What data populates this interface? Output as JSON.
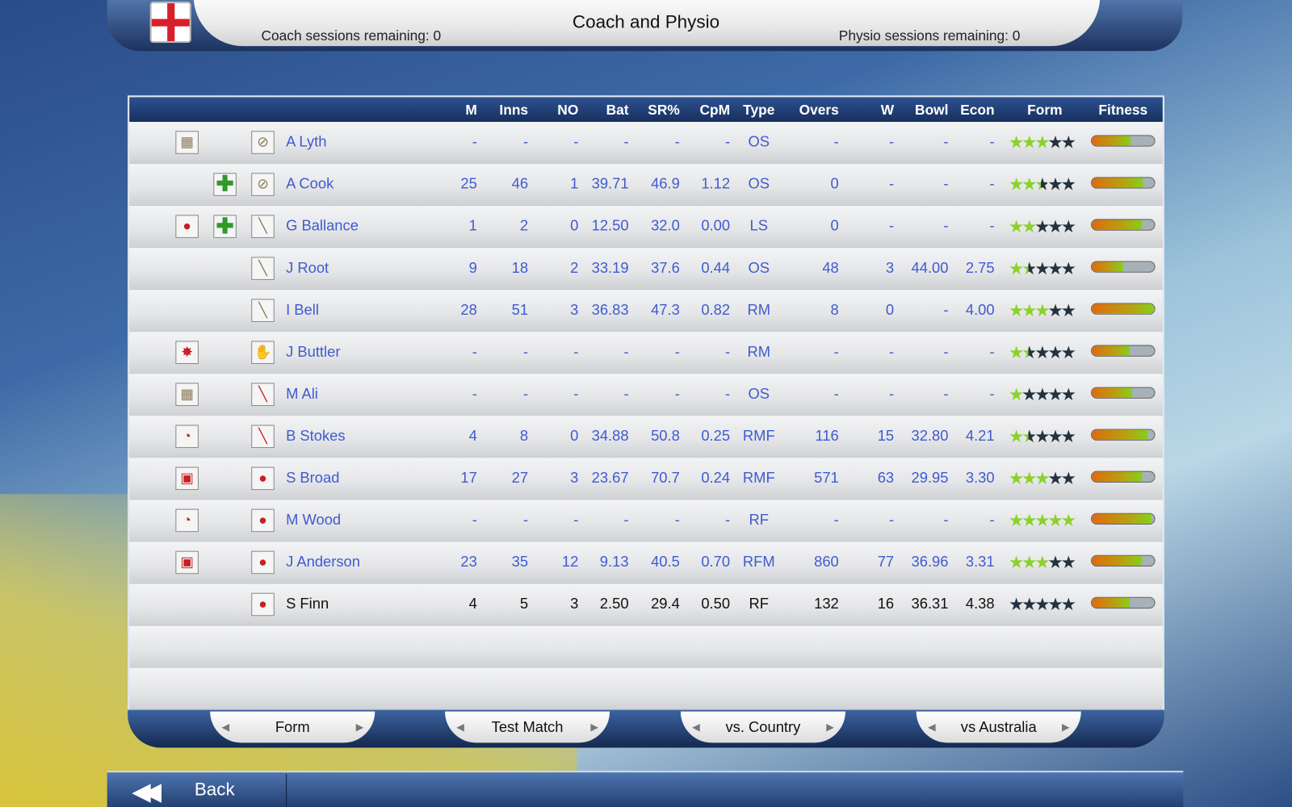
{
  "header": {
    "title": "Coach and Physio",
    "coach_remaining": "Coach sessions remaining: 0",
    "physio_remaining": "Physio sessions remaining: 0",
    "flag": "england-flag"
  },
  "table": {
    "columns": [
      "M",
      "Inns",
      "NO",
      "Bat",
      "SR%",
      "CpM",
      "Type",
      "Overs",
      "W",
      "Bowl",
      "Econ",
      "Form",
      "Fitness"
    ],
    "rows": [
      {
        "status_icon": "bat-net-icon",
        "treatment_icon": "",
        "role_icon": "bat-zero-icon",
        "name": "A Lyth",
        "M": "-",
        "Inns": "-",
        "NO": "-",
        "Bat": "-",
        "SR": "-",
        "CpM": "-",
        "Type": "OS",
        "Overs": "-",
        "W": "-",
        "Bowl": "-",
        "Econ": "-",
        "form": 3,
        "fitness": 0.62
      },
      {
        "status_icon": "",
        "treatment_icon": "plus-icon",
        "role_icon": "bat-zero-icon",
        "name": "A Cook",
        "M": "25",
        "Inns": "46",
        "NO": "1",
        "Bat": "39.71",
        "SR": "46.9",
        "CpM": "1.12",
        "Type": "OS",
        "Overs": "0",
        "W": "-",
        "Bowl": "-",
        "Econ": "-",
        "form": 2.5,
        "fitness": 0.82
      },
      {
        "status_icon": "crowd-ball-icon",
        "treatment_icon": "plus-icon",
        "role_icon": "bat-icon",
        "name": "G Ballance",
        "M": "1",
        "Inns": "2",
        "NO": "0",
        "Bat": "12.50",
        "SR": "32.0",
        "CpM": "0.00",
        "Type": "LS",
        "Overs": "0",
        "W": "-",
        "Bowl": "-",
        "Econ": "-",
        "form": 2,
        "fitness": 0.8
      },
      {
        "status_icon": "",
        "treatment_icon": "",
        "role_icon": "bat-icon",
        "name": "J Root",
        "M": "9",
        "Inns": "18",
        "NO": "2",
        "Bat": "33.19",
        "SR": "37.6",
        "CpM": "0.44",
        "Type": "OS",
        "Overs": "48",
        "W": "3",
        "Bowl": "44.00",
        "Econ": "2.75",
        "form": 1.5,
        "fitness": 0.5
      },
      {
        "status_icon": "",
        "treatment_icon": "",
        "role_icon": "bat-icon",
        "name": "I Bell",
        "M": "28",
        "Inns": "51",
        "NO": "3",
        "Bat": "36.83",
        "SR": "47.3",
        "CpM": "0.82",
        "Type": "RM",
        "Overs": "8",
        "W": "0",
        "Bowl": "-",
        "Econ": "4.00",
        "form": 3,
        "fitness": 1.0
      },
      {
        "status_icon": "bat-ball-splash-icon",
        "treatment_icon": "",
        "role_icon": "keeper-glove-icon",
        "name": "J Buttler",
        "M": "-",
        "Inns": "-",
        "NO": "-",
        "Bat": "-",
        "SR": "-",
        "CpM": "-",
        "Type": "RM",
        "Overs": "-",
        "W": "-",
        "Bowl": "-",
        "Econ": "-",
        "form": 1.5,
        "fitness": 0.6
      },
      {
        "status_icon": "bat-net-icon",
        "treatment_icon": "",
        "role_icon": "bat-ball-icon",
        "name": "M Ali",
        "M": "-",
        "Inns": "-",
        "NO": "-",
        "Bat": "-",
        "SR": "-",
        "CpM": "-",
        "Type": "OS",
        "Overs": "-",
        "W": "-",
        "Bowl": "-",
        "Econ": "-",
        "form": 1,
        "fitness": 0.65
      },
      {
        "status_icon": "ball-hit-icon",
        "treatment_icon": "",
        "role_icon": "bat-ball-icon",
        "name": "B Stokes",
        "M": "4",
        "Inns": "8",
        "NO": "0",
        "Bat": "34.88",
        "SR": "50.8",
        "CpM": "0.25",
        "Type": "RMF",
        "Overs": "116",
        "W": "15",
        "Bowl": "32.80",
        "Econ": "4.21",
        "form": 1.5,
        "fitness": 0.9
      },
      {
        "status_icon": "ball-net-icon",
        "treatment_icon": "",
        "role_icon": "ball-icon",
        "name": "S Broad",
        "M": "17",
        "Inns": "27",
        "NO": "3",
        "Bat": "23.67",
        "SR": "70.7",
        "CpM": "0.24",
        "Type": "RMF",
        "Overs": "571",
        "W": "63",
        "Bowl": "29.95",
        "Econ": "3.30",
        "form": 3,
        "fitness": 0.8
      },
      {
        "status_icon": "ball-hit-icon",
        "treatment_icon": "",
        "role_icon": "ball-icon",
        "name": "M Wood",
        "M": "-",
        "Inns": "-",
        "NO": "-",
        "Bat": "-",
        "SR": "-",
        "CpM": "-",
        "Type": "RF",
        "Overs": "-",
        "W": "-",
        "Bowl": "-",
        "Econ": "-",
        "form": 5,
        "fitness": 0.95
      },
      {
        "status_icon": "ball-net-icon",
        "treatment_icon": "",
        "role_icon": "ball-icon",
        "name": "J Anderson",
        "M": "23",
        "Inns": "35",
        "NO": "12",
        "Bat": "9.13",
        "SR": "40.5",
        "CpM": "0.70",
        "Type": "RFM",
        "Overs": "860",
        "W": "77",
        "Bowl": "36.96",
        "Econ": "3.31",
        "form": 3,
        "fitness": 0.8
      },
      {
        "status_icon": "",
        "treatment_icon": "",
        "role_icon": "ball-icon",
        "name": "S Finn",
        "M": "4",
        "Inns": "5",
        "NO": "3",
        "Bat": "2.50",
        "SR": "29.4",
        "CpM": "0.50",
        "Type": "RF",
        "Overs": "132",
        "W": "16",
        "Bowl": "36.31",
        "Econ": "4.38",
        "form": 0,
        "fitness": 0.6,
        "selected": true
      }
    ]
  },
  "tabs": [
    "Form",
    "Test Match",
    "vs. Country",
    "vs Australia"
  ],
  "back": {
    "label": "Back"
  },
  "colors": {
    "header_blue": "#1c3566",
    "stat_text": "#3f5bd0",
    "star_on": "#8ad22a",
    "star_off": "#233240"
  }
}
